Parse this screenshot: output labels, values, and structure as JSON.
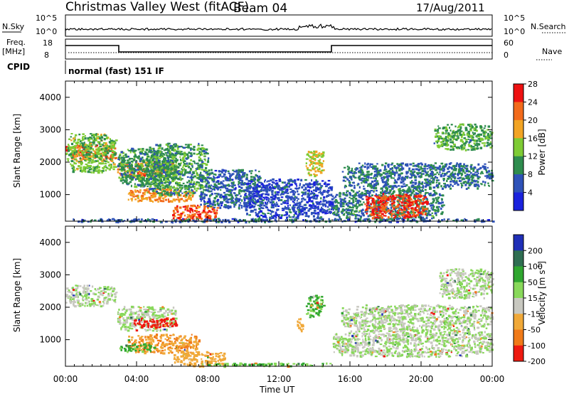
{
  "header": {
    "title": "Christmas Valley West (fitACF)",
    "beam": "Beam 04",
    "date": "17/Aug/2011"
  },
  "strips": {
    "nsky_label": "N.Sky",
    "nsky_ticks": [
      "10^5",
      "10^0"
    ],
    "nsearch_label": "N.Search",
    "nsearch_ticks_right": [
      "10^5",
      "10^0"
    ],
    "freq_label_1": "Freq.",
    "freq_label_2": "[MHz]",
    "freq_ticks": [
      "18",
      "8"
    ],
    "nave_label": "Nave",
    "nave_ticks": [
      "60",
      "0"
    ],
    "cpid_label": "CPID",
    "cpid_value": "normal (fast) 151 IF"
  },
  "chart_data": [
    {
      "type": "heatmap",
      "name": "power-panel",
      "ylabel": "Slant Range [km]",
      "yticks": [
        1000,
        2000,
        3000,
        4000
      ],
      "ylim": [
        180,
        4500
      ],
      "xlim": [
        0,
        24
      ],
      "colorbar_label": "Power [dB]",
      "colorbar_ticks": [
        4,
        8,
        12,
        16,
        20,
        24,
        28
      ],
      "colorbar_range": [
        0,
        32
      ],
      "colors": [
        "#1a22dd",
        "#2e52b8",
        "#2e8c4e",
        "#7ecb34",
        "#f2a424",
        "#f26a1b",
        "#ee1111"
      ],
      "regions": [
        {
          "t": [
            0,
            2.8
          ],
          "r": [
            2050,
            2550
          ],
          "v": 25
        },
        {
          "t": [
            0,
            2.8
          ],
          "r": [
            1700,
            2900
          ],
          "v": 15
        },
        {
          "t": [
            2.9,
            6.2
          ],
          "r": [
            1550,
            2050
          ],
          "v": 24
        },
        {
          "t": [
            2.9,
            6.2
          ],
          "r": [
            1250,
            2450
          ],
          "v": 12
        },
        {
          "t": [
            3.5,
            7.2
          ],
          "r": [
            800,
            1200
          ],
          "v": 22
        },
        {
          "t": [
            4.5,
            8
          ],
          "r": [
            1000,
            2600
          ],
          "v": 12
        },
        {
          "t": [
            6,
            8.5
          ],
          "r": [
            200,
            700
          ],
          "v": 26
        },
        {
          "t": [
            7.5,
            11
          ],
          "r": [
            600,
            1800
          ],
          "v": 8
        },
        {
          "t": [
            10,
            15
          ],
          "r": [
            300,
            1500
          ],
          "v": 6
        },
        {
          "t": [
            13.5,
            14.5
          ],
          "r": [
            1600,
            2400
          ],
          "v": 18
        },
        {
          "t": [
            15,
            21.2
          ],
          "r": [
            250,
            1200
          ],
          "v": 10
        },
        {
          "t": [
            16.8,
            20.3
          ],
          "r": [
            300,
            1050
          ],
          "v": 28
        },
        {
          "t": [
            15.5,
            24
          ],
          "r": [
            1200,
            2000
          ],
          "v": 9
        },
        {
          "t": [
            20.7,
            24
          ],
          "r": [
            2400,
            3200
          ],
          "v": 13
        },
        {
          "t": [
            0,
            24
          ],
          "r": [
            180,
            280
          ],
          "v": 8
        }
      ]
    },
    {
      "type": "heatmap",
      "name": "velocity-panel",
      "xlabel": "Time UT",
      "ylabel": "Slant Range [km]",
      "yticks": [
        1000,
        2000,
        3000,
        4000
      ],
      "ylim": [
        180,
        4500
      ],
      "xlim": [
        0,
        24
      ],
      "xticks": [
        "00:00",
        "04:00",
        "08:00",
        "12:00",
        "16:00",
        "20:00",
        "00:00"
      ],
      "colorbar_label": "Velocity [m s-1]",
      "colorbar_ticks": [
        "200",
        "100",
        "50",
        "15",
        "-15",
        "-50",
        "-100",
        "-200"
      ],
      "colors": [
        "#1f2fb7",
        "#2f6e52",
        "#2fa62f",
        "#88d85a",
        "#c8c8c0",
        "#f0a838",
        "#f07a18",
        "#ee1a10"
      ],
      "regions": [
        {
          "t": [
            0,
            2.8
          ],
          "r": [
            2050,
            2700
          ],
          "v": 0
        },
        {
          "t": [
            2.9,
            6.2
          ],
          "r": [
            1300,
            2050
          ],
          "v": 0
        },
        {
          "t": [
            3.8,
            6.2
          ],
          "r": [
            1400,
            1700
          ],
          "v": -220
        },
        {
          "t": [
            3.5,
            7.5
          ],
          "r": [
            600,
            1200
          ],
          "v": -70
        },
        {
          "t": [
            3,
            5
          ],
          "r": [
            650,
            900
          ],
          "v": 40
        },
        {
          "t": [
            6,
            9
          ],
          "r": [
            200,
            650
          ],
          "v": -50
        },
        {
          "t": [
            13.5,
            14.5
          ],
          "r": [
            1700,
            2400
          ],
          "v": 35
        },
        {
          "t": [
            13,
            13.4
          ],
          "r": [
            1300,
            1700
          ],
          "v": -60
        },
        {
          "t": [
            15,
            24
          ],
          "r": [
            500,
            1300
          ],
          "v": 0
        },
        {
          "t": [
            15.5,
            24
          ],
          "r": [
            1300,
            2100
          ],
          "v": 0
        },
        {
          "t": [
            21,
            24
          ],
          "r": [
            2300,
            3200
          ],
          "v": 0
        },
        {
          "t": [
            8,
            15
          ],
          "r": [
            200,
            300
          ],
          "v": 30
        }
      ]
    }
  ],
  "colorbar_power_ticks": [
    "4",
    "8",
    "12",
    "16",
    "20",
    "24",
    "28"
  ],
  "colorbar_power_label": "Power [dB]",
  "colorbar_vel_label": "Velocity [m s",
  "colorbar_vel_sup": "-1",
  "colorbar_vel_close": "]",
  "ylabel_power": "Slant Range [km]",
  "ylabel_vel": "Slant Range [km]",
  "yticks_labels": [
    "1000",
    "2000",
    "3000",
    "4000"
  ],
  "xlabel": "Time UT",
  "xtick_labels": [
    "00:00",
    "04:00",
    "08:00",
    "12:00",
    "16:00",
    "20:00",
    "00:00"
  ]
}
